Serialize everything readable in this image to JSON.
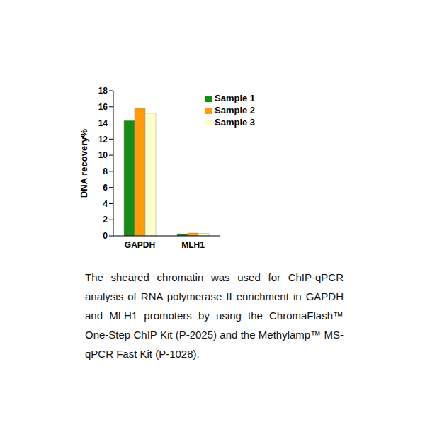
{
  "chart_data": {
    "type": "bar",
    "ylabel": "DNA recovery%",
    "categories": [
      "GAPDH",
      "MLH1"
    ],
    "series": [
      {
        "name": "Sample 1",
        "color": "#178a17",
        "values": [
          14.3,
          0.25
        ]
      },
      {
        "name": "Sample 2",
        "color": "#ff9a0a",
        "values": [
          15.8,
          0.35
        ]
      },
      {
        "name": "Sample 3",
        "color": "#ffffcc",
        "values": [
          15.2,
          0.3
        ]
      }
    ],
    "ylim": [
      0,
      18
    ],
    "yticks": [
      0,
      2,
      4,
      6,
      8,
      10,
      12,
      14,
      16,
      18
    ],
    "grid": false,
    "legend": "upper right",
    "caption": "The sheared chromatin was used for ChIP-qPCR analysis of RNA polymerase II enrichment in GAPDH and MLH1 promoters by using the ChromaFlash™ One-Step ChIP Kit (P-2025) and the Methylamp™ MS-qPCR Fast Kit (P-1028)."
  }
}
